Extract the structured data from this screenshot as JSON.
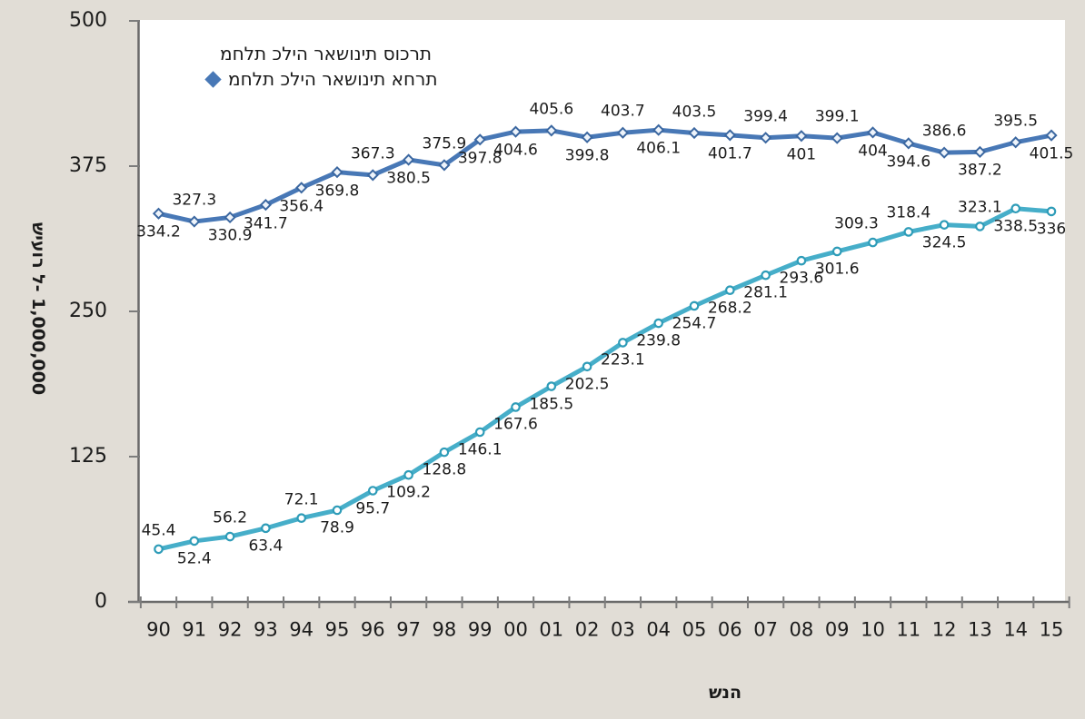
{
  "chart_data": {
    "type": "line",
    "x_categories": [
      "90",
      "91",
      "92",
      "93",
      "94",
      "95",
      "96",
      "97",
      "98",
      "99",
      "00",
      "01",
      "02",
      "03",
      "04",
      "05",
      "06",
      "07",
      "08",
      "09",
      "10",
      "11",
      "12",
      "13",
      "14",
      "15"
    ],
    "series": [
      {
        "name": "מחלת כליה ראשונית סוכרת",
        "color": "#46aec9",
        "marker": "circle",
        "marker_stroke": "#2e9cb8",
        "marker_fill": "#ffffff",
        "values": [
          45.4,
          52.4,
          56.2,
          63.4,
          72.1,
          78.9,
          95.7,
          109.2,
          128.8,
          146.1,
          167.6,
          185.5,
          202.5,
          223.1,
          239.8,
          254.7,
          268.2,
          281.1,
          293.6,
          301.6,
          309.3,
          318.4,
          324.5,
          323.1,
          338.5,
          336
        ],
        "labels": [
          "45.4",
          "52.4",
          "56.2",
          "63.4",
          "72.1",
          "78.9",
          "95.7",
          "109.2",
          "128.8",
          "146.1",
          "167.6",
          "185.5",
          "202.5",
          "223.1",
          "239.8",
          "254.7",
          "268.2",
          "281.1",
          "293.6",
          "301.6",
          "309.3",
          "318.4",
          "324.5",
          "323.1",
          "338.5",
          "336"
        ],
        "label_pos": [
          "above",
          "below",
          "above",
          "below",
          "above",
          "below",
          "below",
          "below",
          "below",
          "below",
          "below",
          "below",
          "below",
          "below",
          "below",
          "below",
          "below",
          "below",
          "below",
          "below",
          "above",
          "above",
          "below",
          "above",
          "below",
          "below"
        ],
        "label_dx": {
          "20": -18
        }
      },
      {
        "name": "מחלת כליה ראשונית אחרת",
        "color": "#4878b6",
        "marker": "diamond",
        "marker_stroke": "#3b67a0",
        "marker_fill": "#eef4fb",
        "values": [
          334.2,
          327.3,
          330.9,
          341.7,
          356.4,
          369.8,
          367.3,
          380.5,
          375.9,
          397.8,
          404.6,
          405.6,
          399.8,
          403.7,
          406.1,
          403.5,
          401.7,
          399.4,
          401,
          399.1,
          404,
          394.6,
          386.6,
          387.2,
          395.5,
          401.5
        ],
        "labels": [
          "334.2",
          "327.3",
          "330.9",
          "341.7",
          "356.4",
          "369.8",
          "367.3",
          "380.5",
          "375.9",
          "397.8",
          "404.6",
          "405.6",
          "399.8",
          "403.7",
          "406.1",
          "403.5",
          "401.7",
          "399.4",
          "401",
          "399.1",
          "404",
          "394.6",
          "386.6",
          "387.2",
          "395.5",
          "401.5"
        ],
        "label_pos": [
          "below",
          "above",
          "below",
          "below",
          "below",
          "below",
          "above",
          "below",
          "above",
          "below",
          "below",
          "above",
          "below",
          "above",
          "below",
          "above",
          "below",
          "above",
          "below",
          "above",
          "below",
          "below",
          "above",
          "below",
          "above",
          "below"
        ],
        "label_dx": {}
      }
    ],
    "ylabel": "שיעור ל- 1,000,000",
    "xlabel": "שנה",
    "yticks": [
      "0",
      "125",
      "250",
      "375",
      "500"
    ],
    "ytick_values": [
      0,
      125,
      250,
      375,
      500
    ],
    "ylim": [
      0,
      500
    ],
    "grid": "off",
    "legend_position": "top-left-inside",
    "legend": {
      "items": [
        {
          "label": "מחלת כליה ראשונית סוכרת",
          "marker": "none"
        },
        {
          "label": "מחלת כליה ראשונית אחרת",
          "marker": "diamond"
        }
      ]
    },
    "axis_color": "#6a6a6a",
    "tick_color": "#7c7c7c"
  }
}
